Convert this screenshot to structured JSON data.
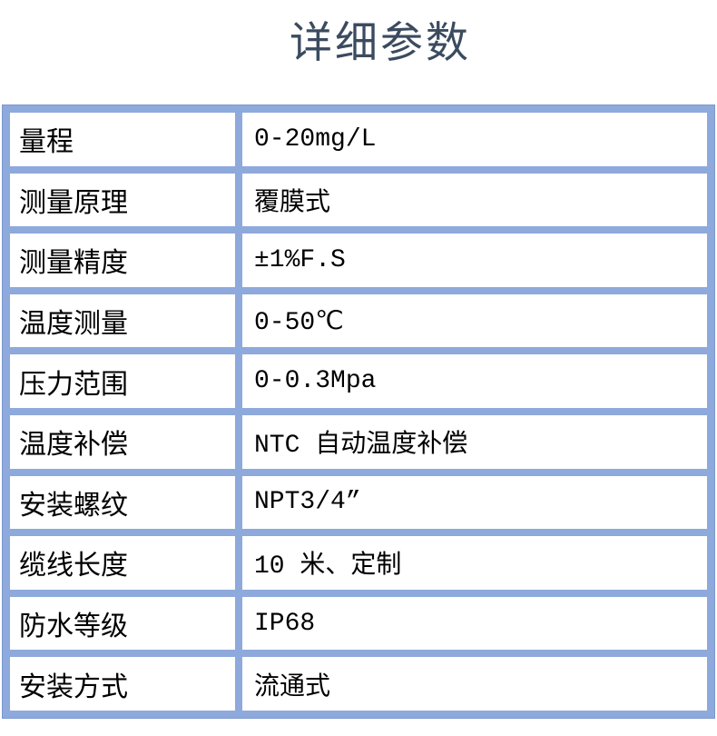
{
  "page": {
    "title": "详细参数"
  },
  "colors": {
    "grid_blue": "#8ea9db",
    "grid_edge_blue": "#7d98cf",
    "title_color": "#3b4b5f",
    "cell_background": "#ffffff",
    "cell_text": "#000000",
    "page_background": "#ffffff"
  },
  "spec_table": {
    "rows": [
      {
        "label": "量程",
        "value": "0-20mg/L"
      },
      {
        "label": "测量原理",
        "value": "覆膜式"
      },
      {
        "label": "测量精度",
        "value": "±1%F.S"
      },
      {
        "label": "温度测量",
        "value": "0-50℃"
      },
      {
        "label": "压力范围",
        "value": "0-0.3Mpa"
      },
      {
        "label": "温度补偿",
        "value": "NTC 自动温度补偿"
      },
      {
        "label": "安装螺纹",
        "value": "NPT3/4”"
      },
      {
        "label": "缆线长度",
        "value": "10 米、定制"
      },
      {
        "label": "防水等级",
        "value": "IP68"
      },
      {
        "label": "安装方式",
        "value": "流通式"
      }
    ]
  }
}
